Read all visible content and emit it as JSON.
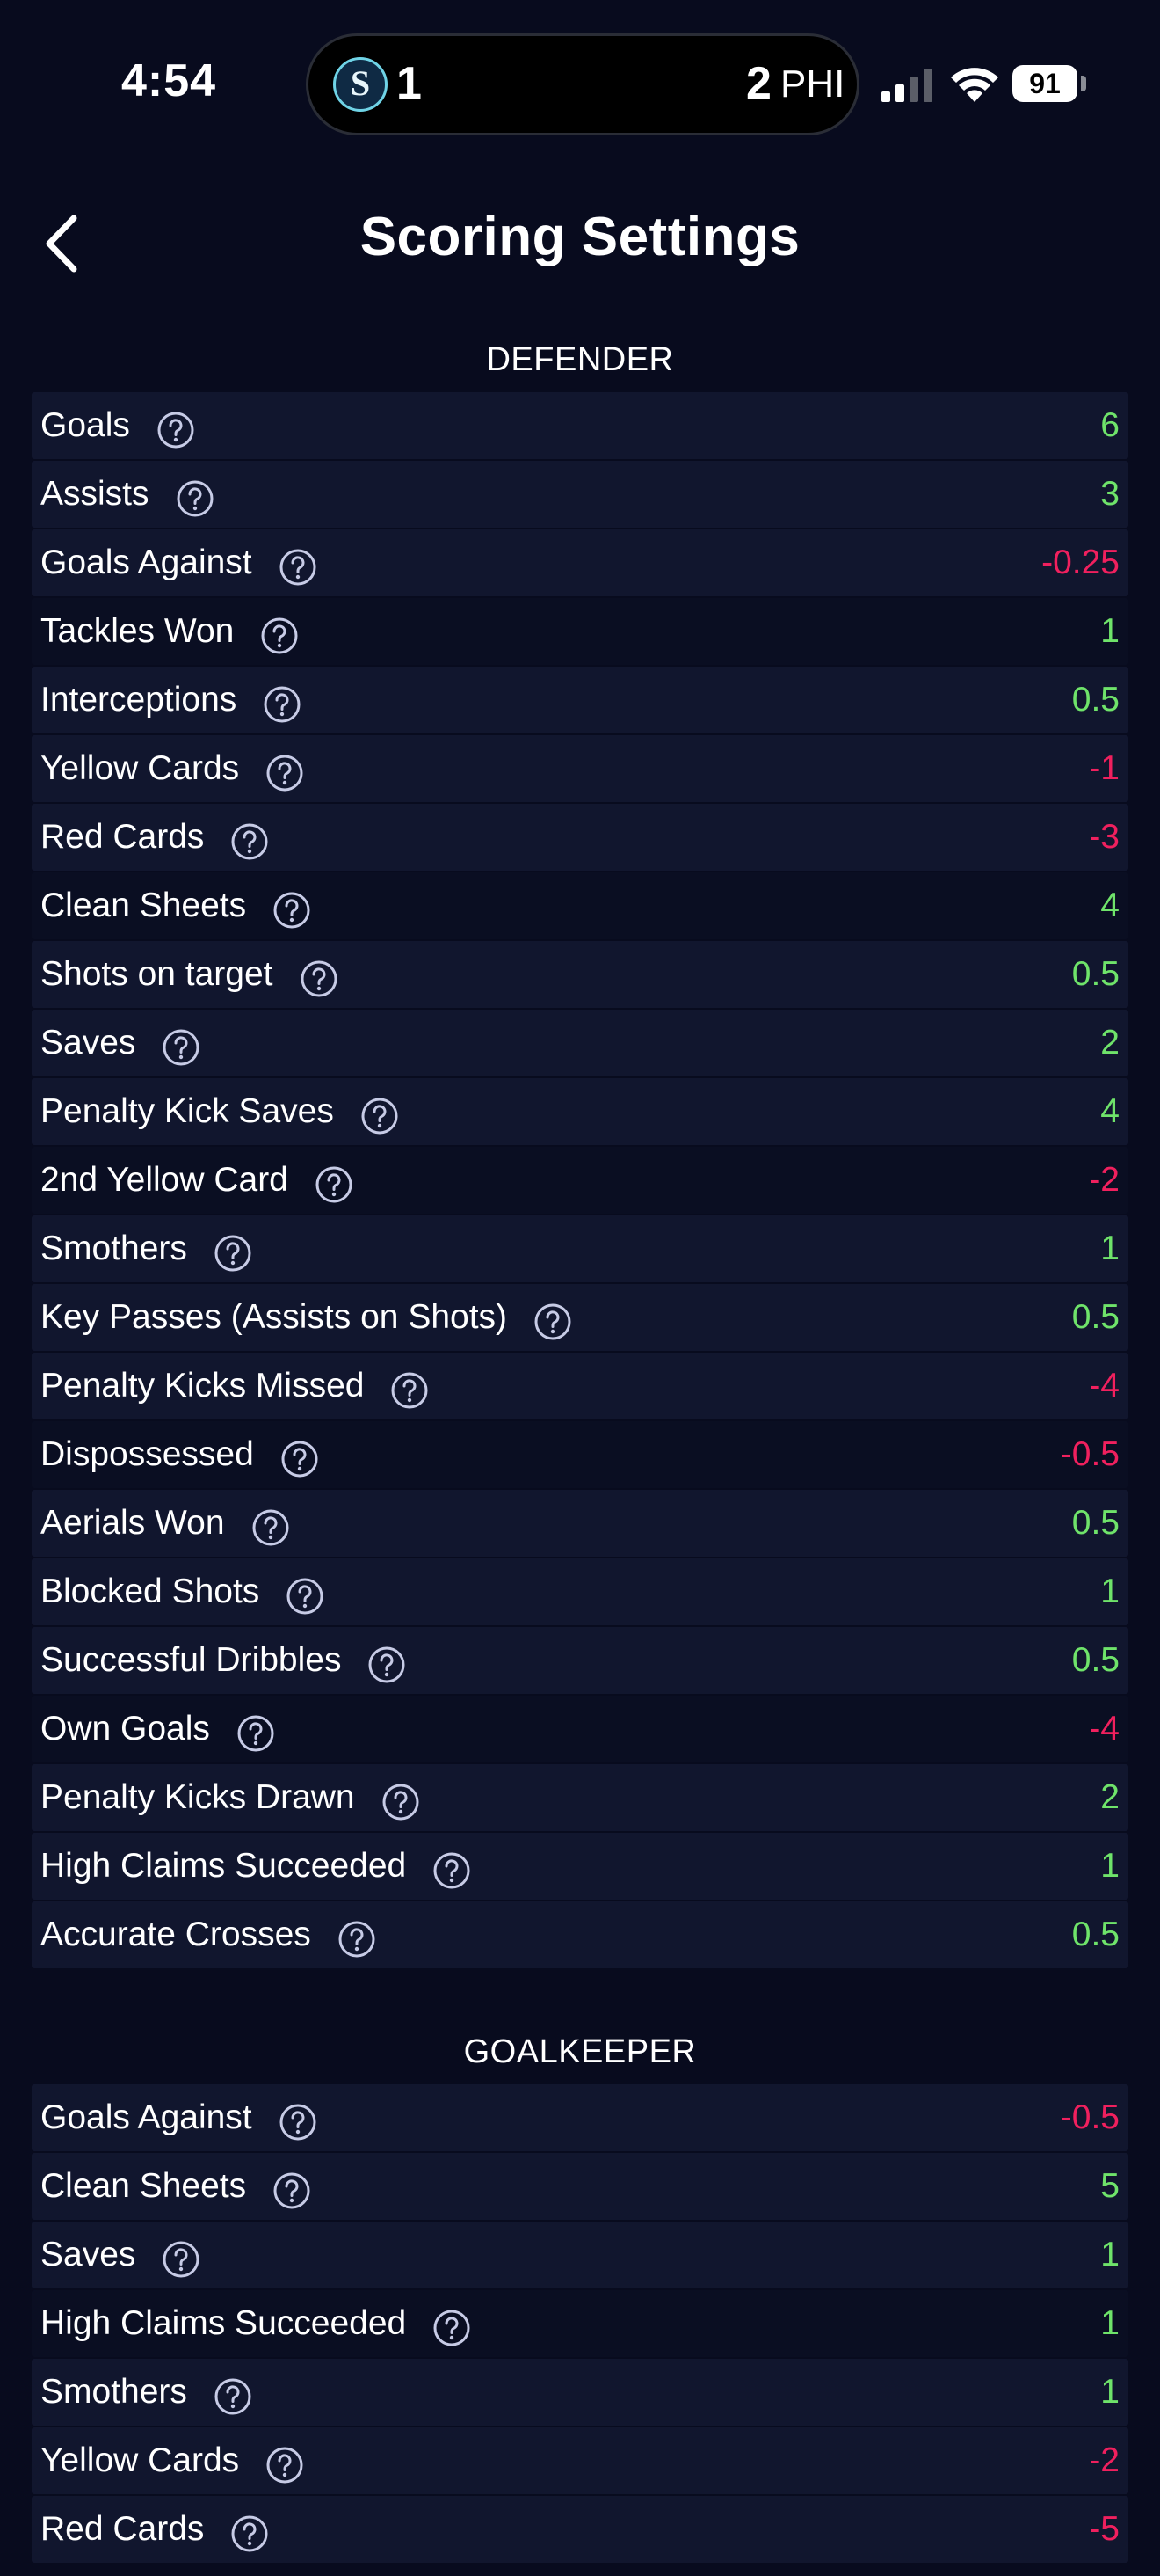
{
  "status_bar": {
    "time": "4:54",
    "home_score": "1",
    "away_score": "2",
    "away_team": "PHI",
    "team_logo_letter": "S",
    "battery": "91",
    "icons": [
      "signal-icon",
      "wifi-icon",
      "battery-icon"
    ]
  },
  "header": {
    "title": "Scoring Settings",
    "back_icon": "chevron-left-icon"
  },
  "colors": {
    "background": "#080b1e",
    "row_alt": "#11162e",
    "positive": "#6fe36a",
    "negative": "#f0205e"
  },
  "sections": [
    {
      "title": "DEFENDER",
      "rows": [
        {
          "label": "Goals",
          "value": "6",
          "sign": "pos"
        },
        {
          "label": "Assists",
          "value": "3",
          "sign": "pos"
        },
        {
          "label": "Goals Against",
          "value": "-0.25",
          "sign": "neg"
        },
        {
          "label": "Tackles Won",
          "value": "1",
          "sign": "pos"
        },
        {
          "label": "Interceptions",
          "value": "0.5",
          "sign": "pos"
        },
        {
          "label": "Yellow Cards",
          "value": "-1",
          "sign": "neg"
        },
        {
          "label": "Red Cards",
          "value": "-3",
          "sign": "neg"
        },
        {
          "label": "Clean Sheets",
          "value": "4",
          "sign": "pos"
        },
        {
          "label": "Shots on target",
          "value": "0.5",
          "sign": "pos"
        },
        {
          "label": "Saves",
          "value": "2",
          "sign": "pos"
        },
        {
          "label": "Penalty Kick Saves",
          "value": "4",
          "sign": "pos"
        },
        {
          "label": "2nd Yellow Card",
          "value": "-2",
          "sign": "neg"
        },
        {
          "label": "Smothers",
          "value": "1",
          "sign": "pos"
        },
        {
          "label": "Key Passes (Assists on Shots)",
          "value": "0.5",
          "sign": "pos"
        },
        {
          "label": "Penalty Kicks Missed",
          "value": "-4",
          "sign": "neg"
        },
        {
          "label": "Dispossessed",
          "value": "-0.5",
          "sign": "neg"
        },
        {
          "label": "Aerials Won",
          "value": "0.5",
          "sign": "pos"
        },
        {
          "label": "Blocked Shots",
          "value": "1",
          "sign": "pos"
        },
        {
          "label": "Successful Dribbles",
          "value": "0.5",
          "sign": "pos"
        },
        {
          "label": "Own Goals",
          "value": "-4",
          "sign": "neg"
        },
        {
          "label": "Penalty Kicks Drawn",
          "value": "2",
          "sign": "pos"
        },
        {
          "label": "High Claims Succeeded",
          "value": "1",
          "sign": "pos"
        },
        {
          "label": "Accurate Crosses",
          "value": "0.5",
          "sign": "pos"
        }
      ]
    },
    {
      "title": "GOALKEEPER",
      "rows": [
        {
          "label": "Goals Against",
          "value": "-0.5",
          "sign": "neg"
        },
        {
          "label": "Clean Sheets",
          "value": "5",
          "sign": "pos"
        },
        {
          "label": "Saves",
          "value": "1",
          "sign": "pos"
        },
        {
          "label": "High Claims Succeeded",
          "value": "1",
          "sign": "pos"
        },
        {
          "label": "Smothers",
          "value": "1",
          "sign": "pos"
        },
        {
          "label": "Yellow Cards",
          "value": "-2",
          "sign": "neg"
        },
        {
          "label": "Red Cards",
          "value": "-5",
          "sign": "neg"
        }
      ]
    }
  ]
}
